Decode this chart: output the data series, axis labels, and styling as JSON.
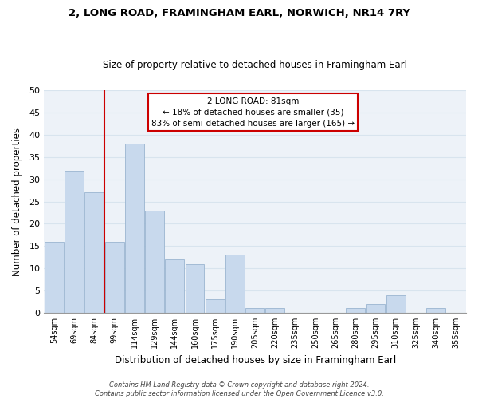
{
  "title": "2, LONG ROAD, FRAMINGHAM EARL, NORWICH, NR14 7RY",
  "subtitle": "Size of property relative to detached houses in Framingham Earl",
  "xlabel": "Distribution of detached houses by size in Framingham Earl",
  "ylabel": "Number of detached properties",
  "footer_lines": [
    "Contains HM Land Registry data © Crown copyright and database right 2024.",
    "Contains public sector information licensed under the Open Government Licence v3.0."
  ],
  "bins": [
    "54sqm",
    "69sqm",
    "84sqm",
    "99sqm",
    "114sqm",
    "129sqm",
    "144sqm",
    "160sqm",
    "175sqm",
    "190sqm",
    "205sqm",
    "220sqm",
    "235sqm",
    "250sqm",
    "265sqm",
    "280sqm",
    "295sqm",
    "310sqm",
    "325sqm",
    "340sqm",
    "355sqm"
  ],
  "values": [
    16,
    32,
    27,
    16,
    38,
    23,
    12,
    11,
    3,
    13,
    1,
    1,
    0,
    0,
    0,
    1,
    2,
    4,
    0,
    1,
    0
  ],
  "bar_color": "#c8d9ed",
  "bar_edge_color": "#9ab5d0",
  "vline_color": "#cc0000",
  "vline_x": 2.5,
  "ylim": [
    0,
    50
  ],
  "yticks": [
    0,
    5,
    10,
    15,
    20,
    25,
    30,
    35,
    40,
    45,
    50
  ],
  "annotation_line1": "2 LONG ROAD: 81sqm",
  "annotation_line2": "← 18% of detached houses are smaller (35)",
  "annotation_line3": "83% of semi-detached houses are larger (165) →",
  "grid_color": "#d8e4ee",
  "background_color": "#edf2f8",
  "fig_bg_color": "#ffffff"
}
